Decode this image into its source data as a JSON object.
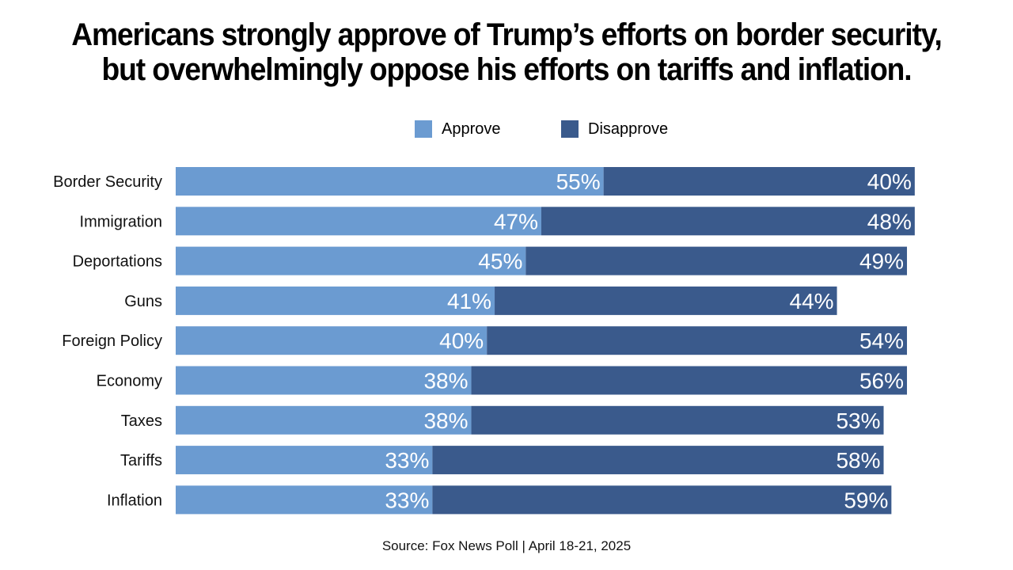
{
  "title": {
    "line1": "Americans strongly approve of Trump’s efforts on border security,",
    "line2": "but overwhelmingly oppose his efforts on tariffs and inflation."
  },
  "source": "Source: Fox News Poll | April 18-21, 2025",
  "colors": {
    "approve": "#6b9bd1",
    "disapprove": "#3a5a8c"
  },
  "chart_data": {
    "type": "bar",
    "orientation": "horizontal",
    "stacked": true,
    "title": "Americans strongly approve of Trump’s efforts on border security, but overwhelmingly oppose his efforts on tariffs and inflation.",
    "legend_position": "top-center",
    "xlim": [
      0,
      100
    ],
    "categories": [
      "Border Security",
      "Immigration",
      "Deportations",
      "Guns",
      "Foreign Policy",
      "Economy",
      "Taxes",
      "Tariffs",
      "Inflation"
    ],
    "series": [
      {
        "name": "Approve",
        "values": [
          55,
          47,
          45,
          41,
          40,
          38,
          38,
          33,
          33
        ],
        "labels": [
          "55%",
          "47%",
          "45%",
          "41%",
          "40%",
          "38%",
          "38%",
          "33%",
          "33%"
        ]
      },
      {
        "name": "Disapprove",
        "values": [
          40,
          48,
          49,
          44,
          54,
          56,
          53,
          58,
          59
        ],
        "labels": [
          "40%",
          "48%",
          "49%",
          "44%",
          "54%",
          "56%",
          "53%",
          "58%",
          "59%"
        ]
      }
    ]
  }
}
